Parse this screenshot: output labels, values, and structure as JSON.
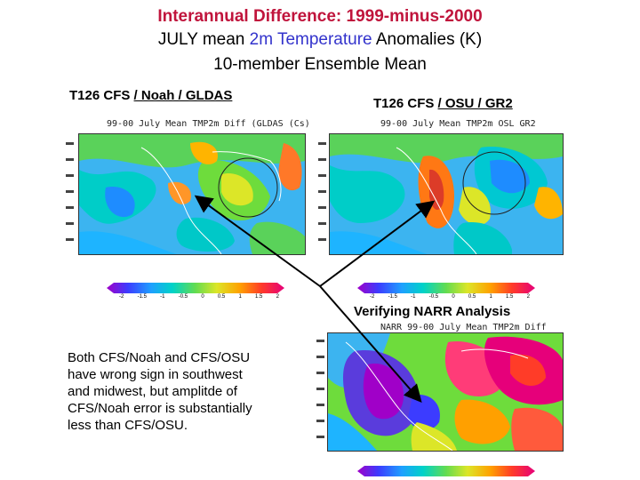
{
  "header": {
    "line1": "Interannual Difference: 1999-minus-2000",
    "line2_prefix": "JULY mean ",
    "line2_highlight": "2m Temperature",
    "line2_suffix": " Anomalies (K)",
    "line3": "10-member Ensemble Mean"
  },
  "panels": {
    "noah": {
      "label_prefix": "T126 CFS ",
      "label_underlined": "/ Noah / GLDAS",
      "map_title": "99-00 July Mean TMP2m Diff (GLDAS (Cs)"
    },
    "osu": {
      "label_prefix": "T126 CFS ",
      "label_underlined": "/ OSU / GR2",
      "map_title": "99-00 July Mean TMP2m OSL GR2"
    },
    "narr": {
      "label": "Verifying NARR Analysis",
      "map_title": "NARR 99-00 July Mean TMP2m Diff"
    }
  },
  "colorbar_labels": [
    "-2",
    "-1.5",
    "-1",
    "-0.5",
    "0",
    "0.5",
    "1",
    "1.5",
    "2"
  ],
  "note": {
    "lines": [
      "Both CFS/Noah and CFS/OSU",
      "have wrong sign in southwest",
      "and midwest, but amplitde of",
      "CFS/Noah error is substantially",
      "less than CFS/OSU."
    ]
  },
  "colors": {
    "title_red": "#c0143c",
    "highlight_blue": "#3333cc"
  }
}
